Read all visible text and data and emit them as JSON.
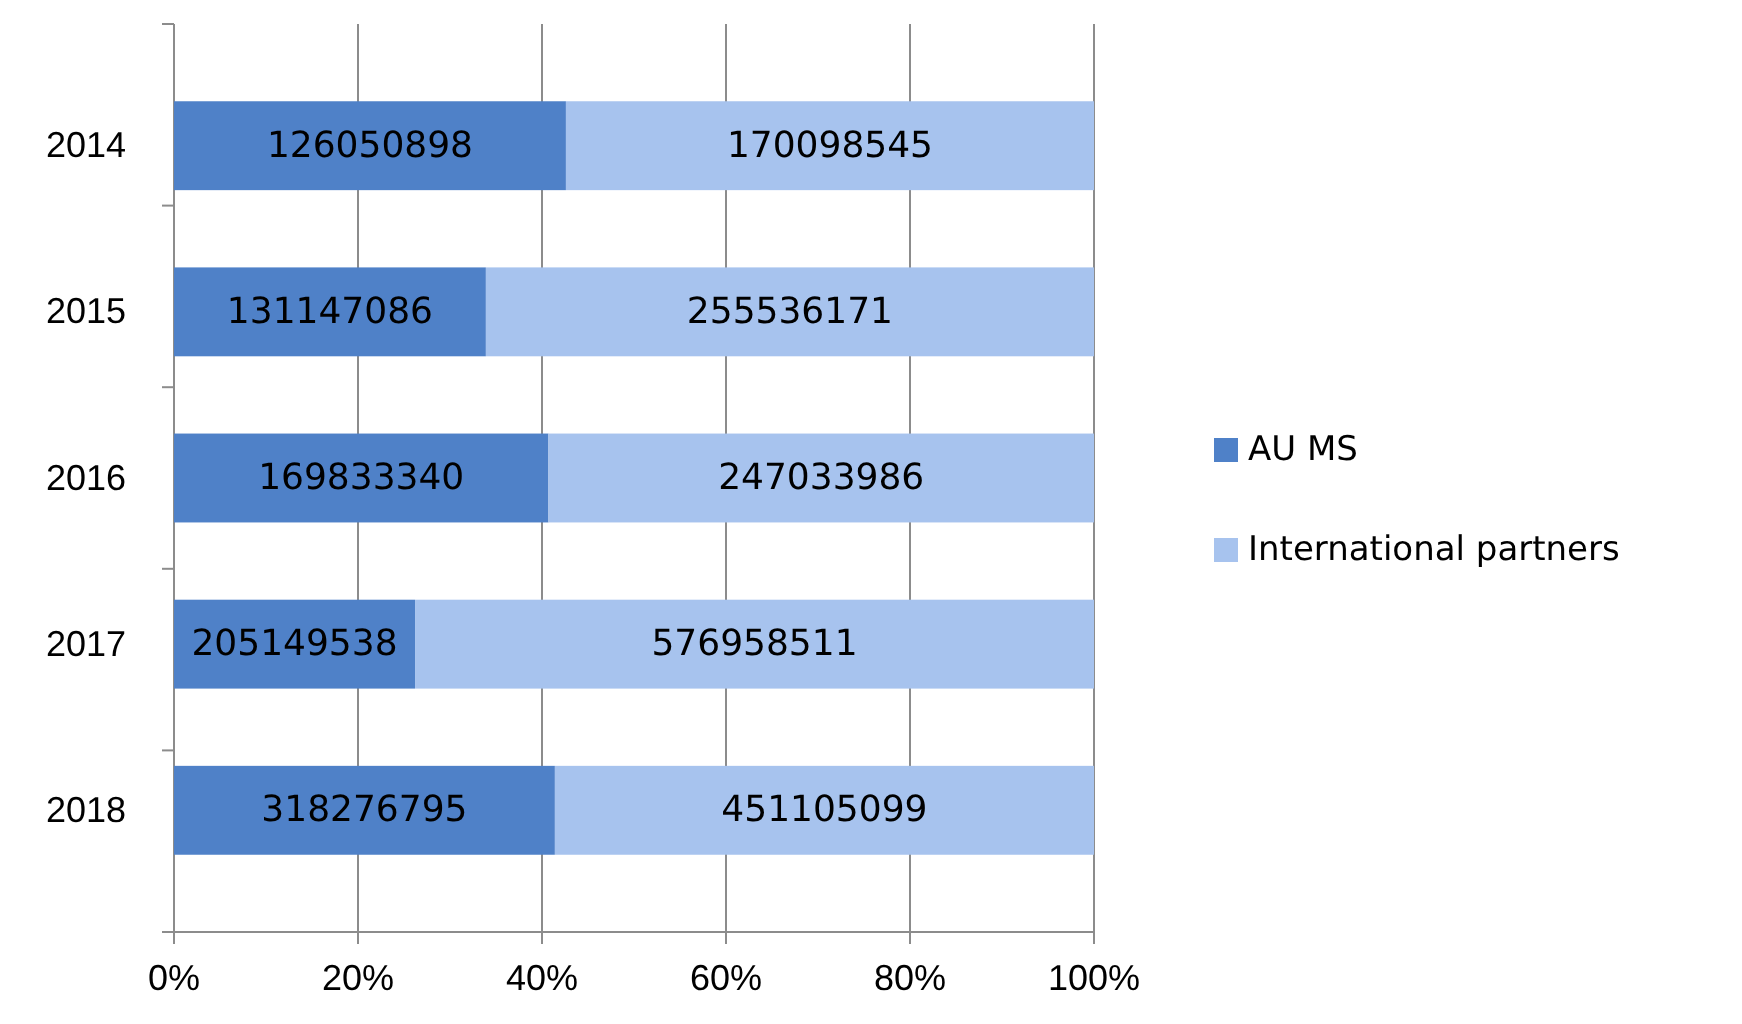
{
  "chart_data": {
    "type": "bar",
    "orientation": "horizontal",
    "stacked": true,
    "categories": [
      "2014",
      "2015",
      "2016",
      "2017",
      "2018"
    ],
    "series": [
      {
        "name": "AU MS",
        "color": "#4f81c8",
        "values": [
          42.6,
          33.9,
          40.7,
          26.2,
          41.4
        ]
      },
      {
        "name": "International partners",
        "color": "#a7c3ee",
        "values": [
          57.4,
          66.1,
          59.3,
          73.8,
          58.6
        ]
      }
    ],
    "annotations": [
      "126050898",
      "170098545",
      "131147086",
      "255536171",
      "169833340",
      "247033986",
      "205149538",
      "576958511",
      "318276795",
      "451105099"
    ],
    "xlim": [
      0,
      100
    ],
    "xticks": [
      {
        "value": 0,
        "label": "0%"
      },
      {
        "value": 20,
        "label": "20%"
      },
      {
        "value": 40,
        "label": "40%"
      },
      {
        "value": 60,
        "label": "60%"
      },
      {
        "value": 80,
        "label": "80%"
      },
      {
        "value": 100,
        "label": "100%"
      }
    ],
    "grid": "x",
    "legend": "right"
  }
}
